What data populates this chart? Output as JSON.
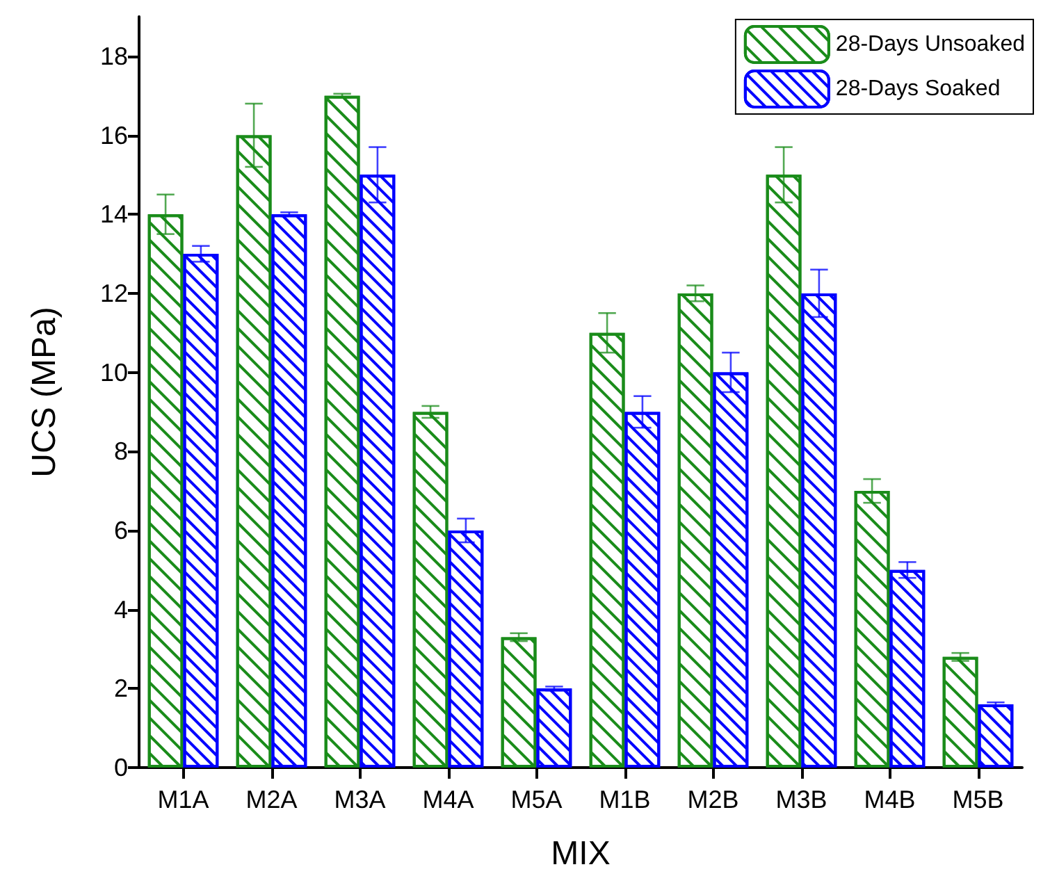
{
  "chart_data": {
    "type": "bar",
    "xlabel": "MIX",
    "ylabel": "UCS (MPa)",
    "categories": [
      "M1A",
      "M2A",
      "M3A",
      "M4A",
      "M5A",
      "M1B",
      "M2B",
      "M3B",
      "M4B",
      "M5B"
    ],
    "series": [
      {
        "name": "28-Days Unsoaked",
        "color": "#1a8c1a",
        "values": [
          14,
          16,
          17,
          9,
          3.3,
          11,
          12,
          15,
          7,
          2.8
        ],
        "errors": [
          0.5,
          0.8,
          0.05,
          0.15,
          0.1,
          0.5,
          0.2,
          0.7,
          0.3,
          0.1
        ]
      },
      {
        "name": "28-Days Soaked",
        "color": "#0000ff",
        "values": [
          13,
          14,
          15,
          6,
          2,
          9,
          10,
          12,
          5,
          1.6
        ],
        "errors": [
          0.2,
          0.05,
          0.7,
          0.3,
          0.05,
          0.4,
          0.5,
          0.6,
          0.2,
          0.05
        ]
      }
    ],
    "ylim": [
      0,
      19
    ],
    "yticks": [
      0,
      2,
      4,
      6,
      8,
      10,
      12,
      14,
      16,
      18
    ],
    "grid": false,
    "legend": "top right"
  }
}
